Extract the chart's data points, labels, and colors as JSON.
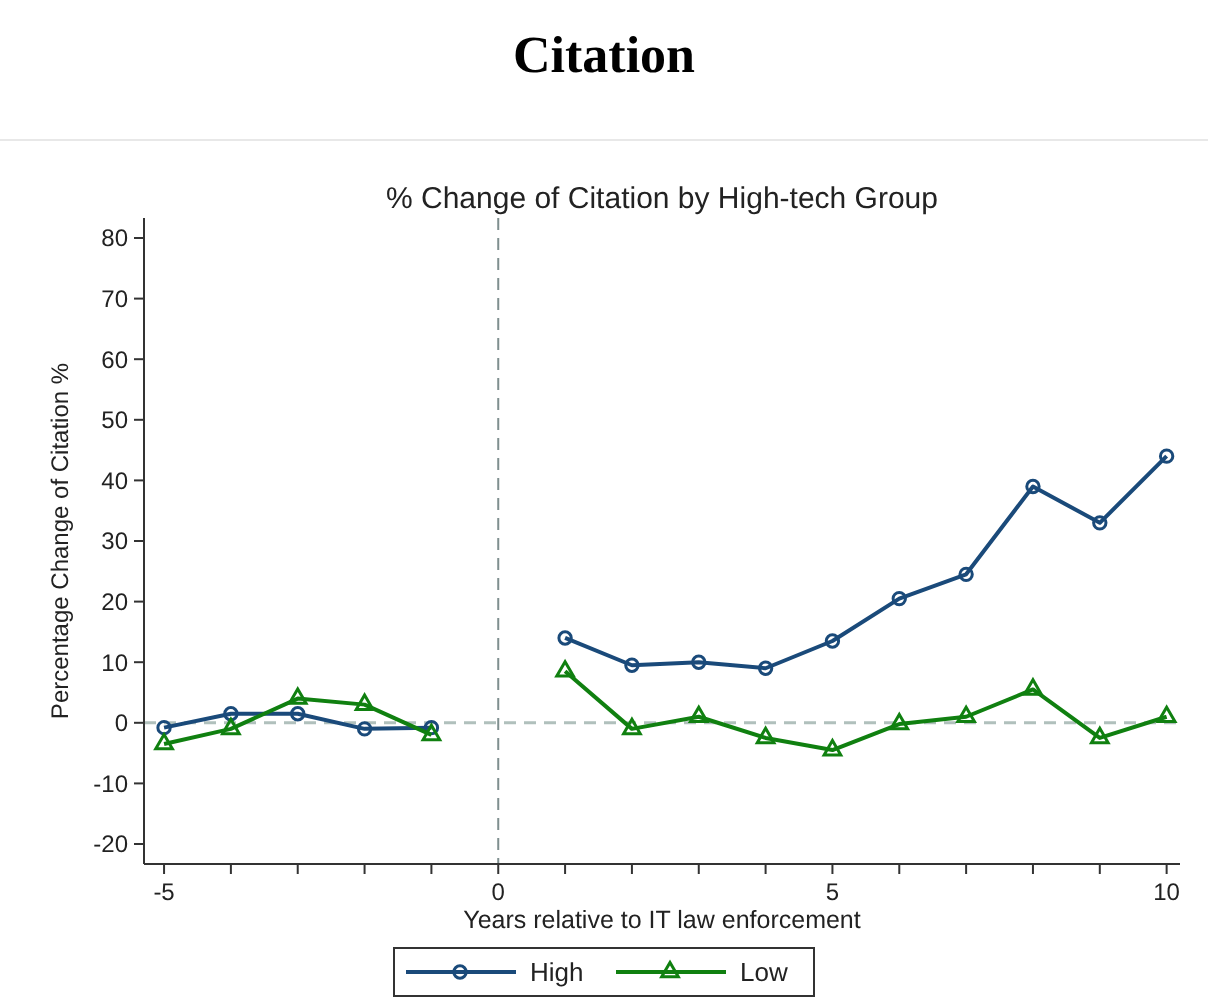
{
  "chart_data": {
    "type": "line",
    "title": "Citation",
    "subtitle": "% Change of Citation by High-tech Group",
    "xlabel": "Years relative to IT law enforcement",
    "ylabel": "Percentage Change of Citation %",
    "x": [
      -5,
      -4,
      -3,
      -2,
      -1,
      0,
      1,
      2,
      3,
      4,
      5,
      6,
      7,
      8,
      9,
      10
    ],
    "series": [
      {
        "name": "High",
        "color": "#1a4a7a",
        "marker": "circle",
        "values": [
          -0.8,
          1.5,
          1.5,
          -1,
          -0.8,
          null,
          14,
          9.5,
          10,
          9,
          13.5,
          20.5,
          24.5,
          39,
          33,
          44
        ]
      },
      {
        "name": "Low",
        "color": "#108010",
        "marker": "triangle",
        "values": [
          -3.5,
          -1,
          4,
          3,
          -2,
          null,
          8.5,
          -1,
          1,
          -2.5,
          -4.5,
          -0.2,
          1,
          5.5,
          -2.5,
          1
        ]
      }
    ],
    "xlim": [
      -5.3,
      10.2
    ],
    "ylim": [
      -23.3,
      83.3
    ],
    "xticks": [
      -5,
      {
        "value": -4,
        "label": null
      },
      {
        "value": -3,
        "label": null
      },
      {
        "value": -2,
        "label": null
      },
      {
        "value": -1,
        "label": null
      },
      0,
      {
        "value": 1,
        "label": null
      },
      {
        "value": 2,
        "label": null
      },
      {
        "value": 3,
        "label": null
      },
      {
        "value": 4,
        "label": null
      },
      5,
      {
        "value": 6,
        "label": null
      },
      {
        "value": 7,
        "label": null
      },
      {
        "value": 8,
        "label": null
      },
      {
        "value": 9,
        "label": null
      },
      10
    ],
    "yticks": [
      -20,
      -10,
      0,
      10,
      20,
      30,
      40,
      50,
      60,
      70,
      80
    ],
    "ref_lines": [
      {
        "axis": "x",
        "value": 0,
        "color": "#7f8f8f",
        "line_style": "dashed"
      },
      {
        "axis": "y",
        "value": 0,
        "color": "#b0c0bc",
        "line_style": "dashed"
      }
    ],
    "grid": false,
    "legend": "bottom"
  }
}
